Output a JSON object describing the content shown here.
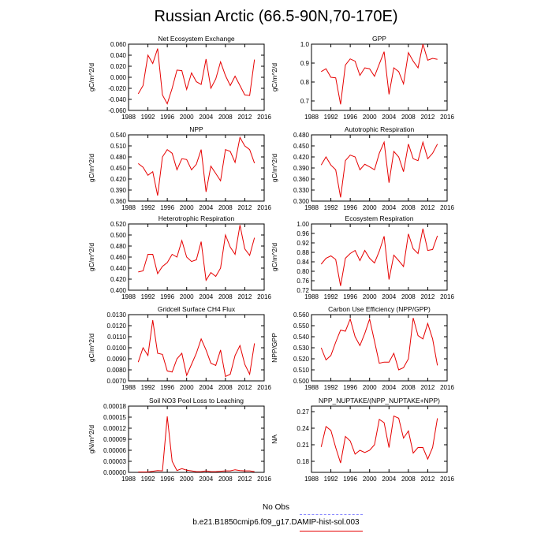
{
  "title": "Russian Arctic (66.5-90N,70-170E)",
  "legend": {
    "items": [
      {
        "label": "No Obs",
        "color": "#8a8aff",
        "dash": true
      },
      {
        "label": "b.e21.B1850cmip6.f09_g17.DAMIP-hist-sol.003",
        "color": "#e60000",
        "dash": false
      }
    ]
  },
  "chart_data": [
    {
      "type": "line",
      "title": "Net Ecosystem Exchange",
      "ylabel": "gC/m^2/d",
      "xlim": [
        1988,
        2016
      ],
      "xticks": [
        1988,
        1992,
        1996,
        2000,
        2004,
        2008,
        2012,
        2016
      ],
      "ylim": [
        -0.06,
        0.06
      ],
      "yticks": [
        "-0.060",
        "-0.040",
        "-0.020",
        "0.000",
        "0.020",
        "0.040",
        "0.060"
      ],
      "ytickvals": [
        -0.06,
        -0.04,
        -0.02,
        0,
        0.02,
        0.04,
        0.06
      ],
      "series": [
        {
          "color": "#e60000",
          "x": [
            1990,
            1991,
            1992,
            1993,
            1994,
            1995,
            1996,
            1997,
            1998,
            1999,
            2000,
            2001,
            2002,
            2003,
            2004,
            2005,
            2006,
            2007,
            2008,
            2009,
            2010,
            2011,
            2012,
            2013,
            2014
          ],
          "y": [
            -0.03,
            -0.015,
            0.04,
            0.025,
            0.052,
            -0.032,
            -0.048,
            -0.02,
            0.013,
            0.012,
            -0.022,
            0.008,
            -0.008,
            -0.013,
            0.033,
            -0.02,
            -0.003,
            0.028,
            0.003,
            -0.015,
            0.002,
            -0.015,
            -0.032,
            -0.033,
            0.032
          ]
        }
      ]
    },
    {
      "type": "line",
      "title": "GPP",
      "ylabel": "gC/m^2/d",
      "xlim": [
        1988,
        2016
      ],
      "xticks": [
        1988,
        1992,
        1996,
        2000,
        2004,
        2008,
        2012,
        2016
      ],
      "ylim": [
        0.65,
        1.0
      ],
      "yticks": [
        "0.7",
        "0.8",
        "0.9",
        "1.0"
      ],
      "ytickvals": [
        0.7,
        0.8,
        0.9,
        1.0
      ],
      "series": [
        {
          "color": "#e60000",
          "x": [
            1990,
            1991,
            1992,
            1993,
            1994,
            1995,
            1996,
            1997,
            1998,
            1999,
            2000,
            2001,
            2002,
            2003,
            2004,
            2005,
            2006,
            2007,
            2008,
            2009,
            2010,
            2011,
            2012,
            2013,
            2014
          ],
          "y": [
            0.855,
            0.87,
            0.825,
            0.822,
            0.682,
            0.89,
            0.922,
            0.91,
            0.835,
            0.875,
            0.87,
            0.83,
            0.895,
            0.96,
            0.735,
            0.875,
            0.855,
            0.79,
            0.955,
            0.91,
            0.875,
            1.0,
            0.915,
            0.925,
            0.92
          ]
        }
      ]
    },
    {
      "type": "line",
      "title": "NPP",
      "ylabel": "gC/m^2/d",
      "xlim": [
        1988,
        2016
      ],
      "xticks": [
        1988,
        1992,
        1996,
        2000,
        2004,
        2008,
        2012,
        2016
      ],
      "ylim": [
        0.36,
        0.54
      ],
      "yticks": [
        "0.360",
        "0.390",
        "0.420",
        "0.450",
        "0.480",
        "0.510",
        "0.540"
      ],
      "ytickvals": [
        0.36,
        0.39,
        0.42,
        0.45,
        0.48,
        0.51,
        0.54
      ],
      "series": [
        {
          "color": "#e60000",
          "x": [
            1990,
            1991,
            1992,
            1993,
            1994,
            1995,
            1996,
            1997,
            1998,
            1999,
            2000,
            2001,
            2002,
            2003,
            2004,
            2005,
            2006,
            2007,
            2008,
            2009,
            2010,
            2011,
            2012,
            2013,
            2014
          ],
          "y": [
            0.462,
            0.452,
            0.43,
            0.44,
            0.375,
            0.48,
            0.5,
            0.49,
            0.445,
            0.475,
            0.473,
            0.445,
            0.46,
            0.5,
            0.385,
            0.455,
            0.435,
            0.415,
            0.5,
            0.495,
            0.465,
            0.533,
            0.51,
            0.5,
            0.463
          ]
        }
      ]
    },
    {
      "type": "line",
      "title": "Autotrophic Respiration",
      "ylabel": "gC/m^2/d",
      "xlim": [
        1988,
        2016
      ],
      "xticks": [
        1988,
        1992,
        1996,
        2000,
        2004,
        2008,
        2012,
        2016
      ],
      "ylim": [
        0.3,
        0.48
      ],
      "yticks": [
        "0.300",
        "0.330",
        "0.360",
        "0.390",
        "0.420",
        "0.450",
        "0.480"
      ],
      "ytickvals": [
        0.3,
        0.33,
        0.36,
        0.39,
        0.42,
        0.45,
        0.48
      ],
      "series": [
        {
          "color": "#e60000",
          "x": [
            1990,
            1991,
            1992,
            1993,
            1994,
            1995,
            1996,
            1997,
            1998,
            1999,
            2000,
            2001,
            2002,
            2003,
            2004,
            2005,
            2006,
            2007,
            2008,
            2009,
            2010,
            2011,
            2012,
            2013,
            2014
          ],
          "y": [
            0.398,
            0.42,
            0.398,
            0.385,
            0.31,
            0.41,
            0.425,
            0.42,
            0.385,
            0.4,
            0.393,
            0.385,
            0.43,
            0.46,
            0.35,
            0.435,
            0.42,
            0.38,
            0.455,
            0.415,
            0.41,
            0.46,
            0.415,
            0.43,
            0.455
          ]
        }
      ]
    },
    {
      "type": "line",
      "title": "Heterotrophic Respiration",
      "ylabel": "gC/m^2/d",
      "xlim": [
        1988,
        2016
      ],
      "xticks": [
        1988,
        1992,
        1996,
        2000,
        2004,
        2008,
        2012,
        2016
      ],
      "ylim": [
        0.4,
        0.52
      ],
      "yticks": [
        "0.400",
        "0.420",
        "0.440",
        "0.460",
        "0.480",
        "0.500",
        "0.520"
      ],
      "ytickvals": [
        0.4,
        0.42,
        0.44,
        0.46,
        0.48,
        0.5,
        0.52
      ],
      "series": [
        {
          "color": "#e60000",
          "x": [
            1990,
            1991,
            1992,
            1993,
            1994,
            1995,
            1996,
            1997,
            1998,
            1999,
            2000,
            2001,
            2002,
            2003,
            2004,
            2005,
            2006,
            2007,
            2008,
            2009,
            2010,
            2011,
            2012,
            2013,
            2014
          ],
          "y": [
            0.433,
            0.435,
            0.465,
            0.465,
            0.43,
            0.443,
            0.45,
            0.465,
            0.46,
            0.49,
            0.46,
            0.452,
            0.455,
            0.488,
            0.418,
            0.432,
            0.425,
            0.44,
            0.5,
            0.478,
            0.465,
            0.518,
            0.475,
            0.463,
            0.495
          ]
        }
      ]
    },
    {
      "type": "line",
      "title": "Ecosystem Respiration",
      "ylabel": "gC/m^2/d",
      "xlim": [
        1988,
        2016
      ],
      "xticks": [
        1988,
        1992,
        1996,
        2000,
        2004,
        2008,
        2012,
        2016
      ],
      "ylim": [
        0.72,
        1.0
      ],
      "yticks": [
        "0.72",
        "0.76",
        "0.80",
        "0.84",
        "0.88",
        "0.92",
        "0.96",
        "1.00"
      ],
      "ytickvals": [
        0.72,
        0.76,
        0.8,
        0.84,
        0.88,
        0.92,
        0.96,
        1.0
      ],
      "series": [
        {
          "color": "#e60000",
          "x": [
            1990,
            1991,
            1992,
            1993,
            1994,
            1995,
            1996,
            1997,
            1998,
            1999,
            2000,
            2001,
            2002,
            2003,
            2004,
            2005,
            2006,
            2007,
            2008,
            2009,
            2010,
            2011,
            2012,
            2013,
            2014
          ],
          "y": [
            0.83,
            0.855,
            0.865,
            0.85,
            0.738,
            0.855,
            0.875,
            0.888,
            0.845,
            0.888,
            0.855,
            0.835,
            0.885,
            0.948,
            0.765,
            0.868,
            0.845,
            0.82,
            0.958,
            0.895,
            0.875,
            0.98,
            0.888,
            0.892,
            0.95
          ]
        }
      ]
    },
    {
      "type": "line",
      "title": "Gridcell Surface CH4 Flux",
      "ylabel": "gC/m^2/d",
      "xlim": [
        1988,
        2016
      ],
      "xticks": [
        1988,
        1992,
        1996,
        2000,
        2004,
        2008,
        2012,
        2016
      ],
      "ylim": [
        0.007,
        0.013
      ],
      "yticks": [
        "0.0070",
        "0.0080",
        "0.0090",
        "0.0100",
        "0.0110",
        "0.0120",
        "0.0130"
      ],
      "ytickvals": [
        0.007,
        0.008,
        0.009,
        0.01,
        0.011,
        0.012,
        0.013
      ],
      "series": [
        {
          "color": "#e60000",
          "x": [
            1990,
            1991,
            1992,
            1993,
            1994,
            1995,
            1996,
            1997,
            1998,
            1999,
            2000,
            2001,
            2002,
            2003,
            2004,
            2005,
            2006,
            2007,
            2008,
            2009,
            2010,
            2011,
            2012,
            2013,
            2014
          ],
          "y": [
            0.0087,
            0.01,
            0.0093,
            0.0125,
            0.0095,
            0.0094,
            0.0079,
            0.0078,
            0.009,
            0.0095,
            0.0075,
            0.0085,
            0.0095,
            0.0108,
            0.0098,
            0.0086,
            0.0084,
            0.0098,
            0.0074,
            0.0076,
            0.0093,
            0.0102,
            0.0085,
            0.0076,
            0.0104
          ]
        }
      ]
    },
    {
      "type": "line",
      "title": "Carbon Use Efficiency (NPP/GPP)",
      "ylabel": "NPP/GPP",
      "xlim": [
        1988,
        2016
      ],
      "xticks": [
        1988,
        1992,
        1996,
        2000,
        2004,
        2008,
        2012,
        2016
      ],
      "ylim": [
        0.5,
        0.56
      ],
      "yticks": [
        "0.500",
        "0.510",
        "0.520",
        "0.530",
        "0.540",
        "0.550",
        "0.560"
      ],
      "ytickvals": [
        0.5,
        0.51,
        0.52,
        0.53,
        0.54,
        0.55,
        0.56
      ],
      "series": [
        {
          "color": "#e60000",
          "x": [
            1990,
            1991,
            1992,
            1993,
            1994,
            1995,
            1996,
            1997,
            1998,
            1999,
            2000,
            2001,
            2002,
            2003,
            2004,
            2005,
            2006,
            2007,
            2008,
            2009,
            2010,
            2011,
            2012,
            2013,
            2014
          ],
          "y": [
            0.53,
            0.519,
            0.523,
            0.535,
            0.546,
            0.545,
            0.556,
            0.54,
            0.532,
            0.543,
            0.556,
            0.536,
            0.516,
            0.517,
            0.517,
            0.525,
            0.51,
            0.512,
            0.52,
            0.557,
            0.541,
            0.538,
            0.552,
            0.538,
            0.514
          ]
        }
      ]
    },
    {
      "type": "line",
      "title": "Soil NO3 Pool Loss to Leaching",
      "ylabel": "gN/m^2/d",
      "xlim": [
        1988,
        2016
      ],
      "xticks": [
        1988,
        1992,
        1996,
        2000,
        2004,
        2008,
        2012,
        2016
      ],
      "ylim": [
        0,
        0.00018
      ],
      "yticks": [
        "0.00000",
        "0.00003",
        "0.00006",
        "0.00009",
        "0.00012",
        "0.00015",
        "0.00018"
      ],
      "ytickvals": [
        0,
        3e-05,
        6e-05,
        9e-05,
        0.00012,
        0.00015,
        0.00018
      ],
      "series": [
        {
          "color": "#e60000",
          "x": [
            1990,
            1991,
            1992,
            1993,
            1994,
            1995,
            1996,
            1997,
            1998,
            1999,
            2000,
            2001,
            2002,
            2003,
            2004,
            2005,
            2006,
            2007,
            2008,
            2009,
            2010,
            2011,
            2012,
            2013,
            2014
          ],
          "y": [
            1e-06,
            1e-06,
            1e-06,
            3e-06,
            5e-06,
            4e-06,
            0.000152,
            3e-05,
            5e-06,
            1e-05,
            6e-06,
            4e-06,
            2e-06,
            2e-06,
            4e-06,
            2e-06,
            2e-06,
            3e-06,
            4e-06,
            4e-06,
            7e-06,
            5e-06,
            4e-06,
            4e-06,
            2e-06
          ]
        }
      ]
    },
    {
      "type": "line",
      "title": "NPP_NUPTAKE/(NPP_NUPTAKE+NPP)",
      "ylabel": "NA",
      "xlim": [
        1988,
        2016
      ],
      "xticks": [
        1988,
        1992,
        1996,
        2000,
        2004,
        2008,
        2012,
        2016
      ],
      "ylim": [
        0.16,
        0.28
      ],
      "yticks": [
        "0.18",
        "0.21",
        "0.24",
        "0.27"
      ],
      "ytickvals": [
        0.18,
        0.21,
        0.24,
        0.27
      ],
      "series": [
        {
          "color": "#e60000",
          "x": [
            1990,
            1991,
            1992,
            1993,
            1994,
            1995,
            1996,
            1997,
            1998,
            1999,
            2000,
            2001,
            2002,
            2003,
            2004,
            2005,
            2006,
            2007,
            2008,
            2009,
            2010,
            2011,
            2012,
            2013,
            2014
          ],
          "y": [
            0.206,
            0.243,
            0.236,
            0.205,
            0.177,
            0.225,
            0.217,
            0.193,
            0.2,
            0.196,
            0.2,
            0.21,
            0.256,
            0.25,
            0.205,
            0.262,
            0.258,
            0.222,
            0.235,
            0.195,
            0.205,
            0.205,
            0.184,
            0.205,
            0.258
          ]
        }
      ]
    }
  ]
}
